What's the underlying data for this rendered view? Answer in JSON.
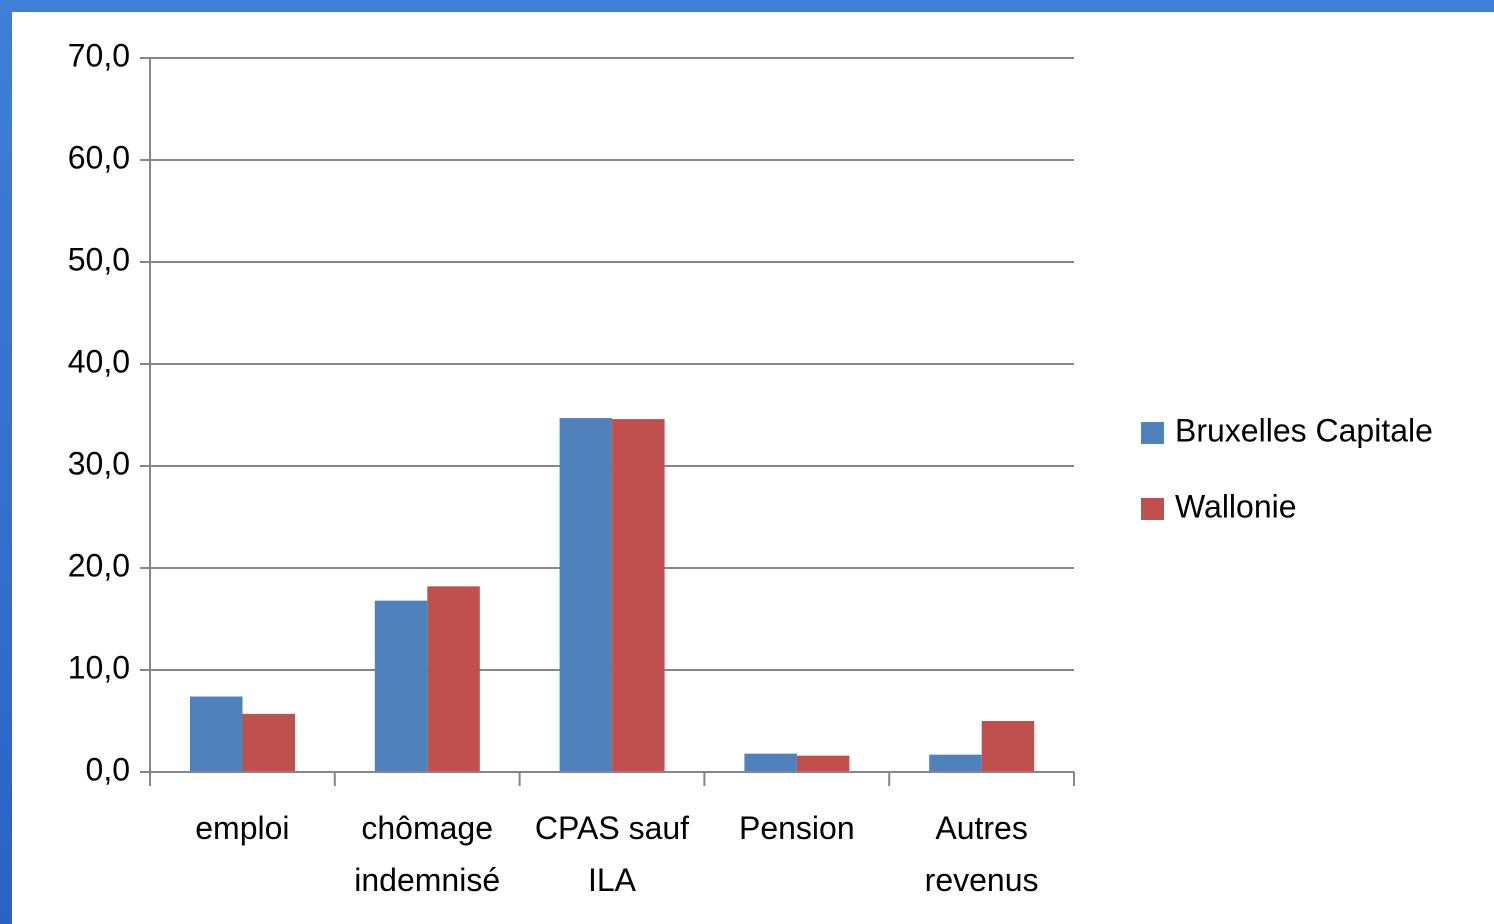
{
  "chart_data": {
    "type": "bar",
    "categories": [
      "emploi",
      "chômage indemnisé",
      "CPAS sauf ILA",
      "Pension",
      "Autres revenus"
    ],
    "series": [
      {
        "name": "Bruxelles Capitale",
        "color": "#4f81bd",
        "values": [
          7.4,
          16.8,
          34.7,
          1.8,
          1.7
        ]
      },
      {
        "name": "Wallonie",
        "color": "#c0504d",
        "values": [
          5.7,
          18.2,
          34.6,
          1.6,
          5.0
        ]
      }
    ],
    "ylim": [
      0,
      70
    ],
    "yticks": [
      {
        "value": 0,
        "label": "0,0"
      },
      {
        "value": 10,
        "label": "10,0"
      },
      {
        "value": 20,
        "label": "20,0"
      },
      {
        "value": 30,
        "label": "30,0"
      },
      {
        "value": 40,
        "label": "40,0"
      },
      {
        "value": 50,
        "label": "50,0"
      },
      {
        "value": 60,
        "label": "60,0"
      },
      {
        "value": 70,
        "label": "70,0"
      }
    ],
    "grid": true,
    "legend": "right"
  }
}
